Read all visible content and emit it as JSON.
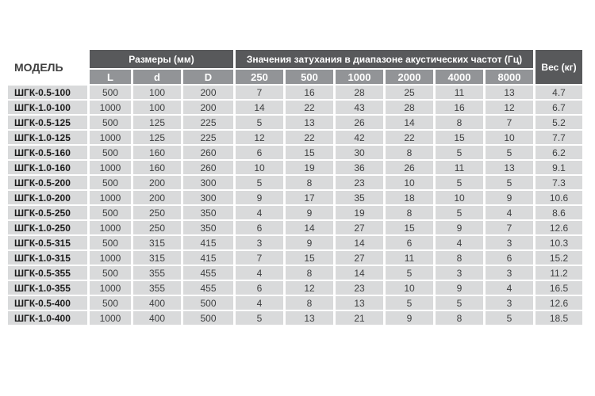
{
  "table": {
    "model_header": "МОДЕЛЬ",
    "dimensions_header": "Размеры (мм)",
    "dimension_columns": [
      "L",
      "d",
      "D"
    ],
    "attenuation_header": "Значения затухания в диапазоне акустических частот (Гц)",
    "frequency_columns": [
      "250",
      "500",
      "1000",
      "2000",
      "4000",
      "8000"
    ],
    "weight_header": "Вес (кг)",
    "rows": [
      {
        "model": "ШГК-0.5-100",
        "L": "500",
        "d": "100",
        "D": "200",
        "values": [
          "7",
          "16",
          "28",
          "25",
          "11",
          "13"
        ],
        "weight": "4.7"
      },
      {
        "model": "ШГК-1.0-100",
        "L": "1000",
        "d": "100",
        "D": "200",
        "values": [
          "14",
          "22",
          "43",
          "28",
          "16",
          "12"
        ],
        "weight": "6.7"
      },
      {
        "model": "ШГК-0.5-125",
        "L": "500",
        "d": "125",
        "D": "225",
        "values": [
          "5",
          "13",
          "26",
          "14",
          "8",
          "7"
        ],
        "weight": "5.2"
      },
      {
        "model": "ШГК-1.0-125",
        "L": "1000",
        "d": "125",
        "D": "225",
        "values": [
          "12",
          "22",
          "42",
          "22",
          "15",
          "10"
        ],
        "weight": "7.7"
      },
      {
        "model": "ШГК-0.5-160",
        "L": "500",
        "d": "160",
        "D": "260",
        "values": [
          "6",
          "15",
          "30",
          "8",
          "5",
          "5"
        ],
        "weight": "6.2"
      },
      {
        "model": "ШГК-1.0-160",
        "L": "1000",
        "d": "160",
        "D": "260",
        "values": [
          "10",
          "19",
          "36",
          "26",
          "11",
          "13"
        ],
        "weight": "9.1"
      },
      {
        "model": "ШГК-0.5-200",
        "L": "500",
        "d": "200",
        "D": "300",
        "values": [
          "5",
          "8",
          "23",
          "10",
          "5",
          "5"
        ],
        "weight": "7.3"
      },
      {
        "model": "ШГК-1.0-200",
        "L": "1000",
        "d": "200",
        "D": "300",
        "values": [
          "9",
          "17",
          "35",
          "18",
          "10",
          "9"
        ],
        "weight": "10.6"
      },
      {
        "model": "ШГК-0.5-250",
        "L": "500",
        "d": "250",
        "D": "350",
        "values": [
          "4",
          "9",
          "19",
          "8",
          "5",
          "4"
        ],
        "weight": "8.6"
      },
      {
        "model": "ШГК-1.0-250",
        "L": "1000",
        "d": "250",
        "D": "350",
        "values": [
          "6",
          "14",
          "27",
          "15",
          "9",
          "7"
        ],
        "weight": "12.6"
      },
      {
        "model": "ШГК-0.5-315",
        "L": "500",
        "d": "315",
        "D": "415",
        "values": [
          "3",
          "9",
          "14",
          "6",
          "4",
          "3"
        ],
        "weight": "10.3"
      },
      {
        "model": "ШГК-1.0-315",
        "L": "1000",
        "d": "315",
        "D": "415",
        "values": [
          "7",
          "15",
          "27",
          "11",
          "8",
          "6"
        ],
        "weight": "15.2"
      },
      {
        "model": "ШГК-0.5-355",
        "L": "500",
        "d": "355",
        "D": "455",
        "values": [
          "4",
          "8",
          "14",
          "5",
          "3",
          "3"
        ],
        "weight": "11.2"
      },
      {
        "model": "ШГК-1.0-355",
        "L": "1000",
        "d": "355",
        "D": "455",
        "values": [
          "6",
          "12",
          "23",
          "10",
          "9",
          "4"
        ],
        "weight": "16.5"
      },
      {
        "model": "ШГК-0.5-400",
        "L": "500",
        "d": "400",
        "D": "500",
        "values": [
          "4",
          "8",
          "13",
          "5",
          "5",
          "3"
        ],
        "weight": "12.6"
      },
      {
        "model": "ШГК-1.0-400",
        "L": "1000",
        "d": "400",
        "D": "500",
        "values": [
          "5",
          "13",
          "21",
          "9",
          "8",
          "5"
        ],
        "weight": "18.5"
      }
    ]
  },
  "colors": {
    "header_dark": "#58595b",
    "header_mid": "#929497",
    "cell_background": "#d9dadb",
    "page_background": "#ffffff"
  },
  "chart_data": {
    "type": "table",
    "title": "Значения затухания в диапазоне акустических частот (Гц)",
    "columns": [
      "МОДЕЛЬ",
      "L",
      "d",
      "D",
      "250",
      "500",
      "1000",
      "2000",
      "4000",
      "8000",
      "Вес (кг)"
    ]
  }
}
